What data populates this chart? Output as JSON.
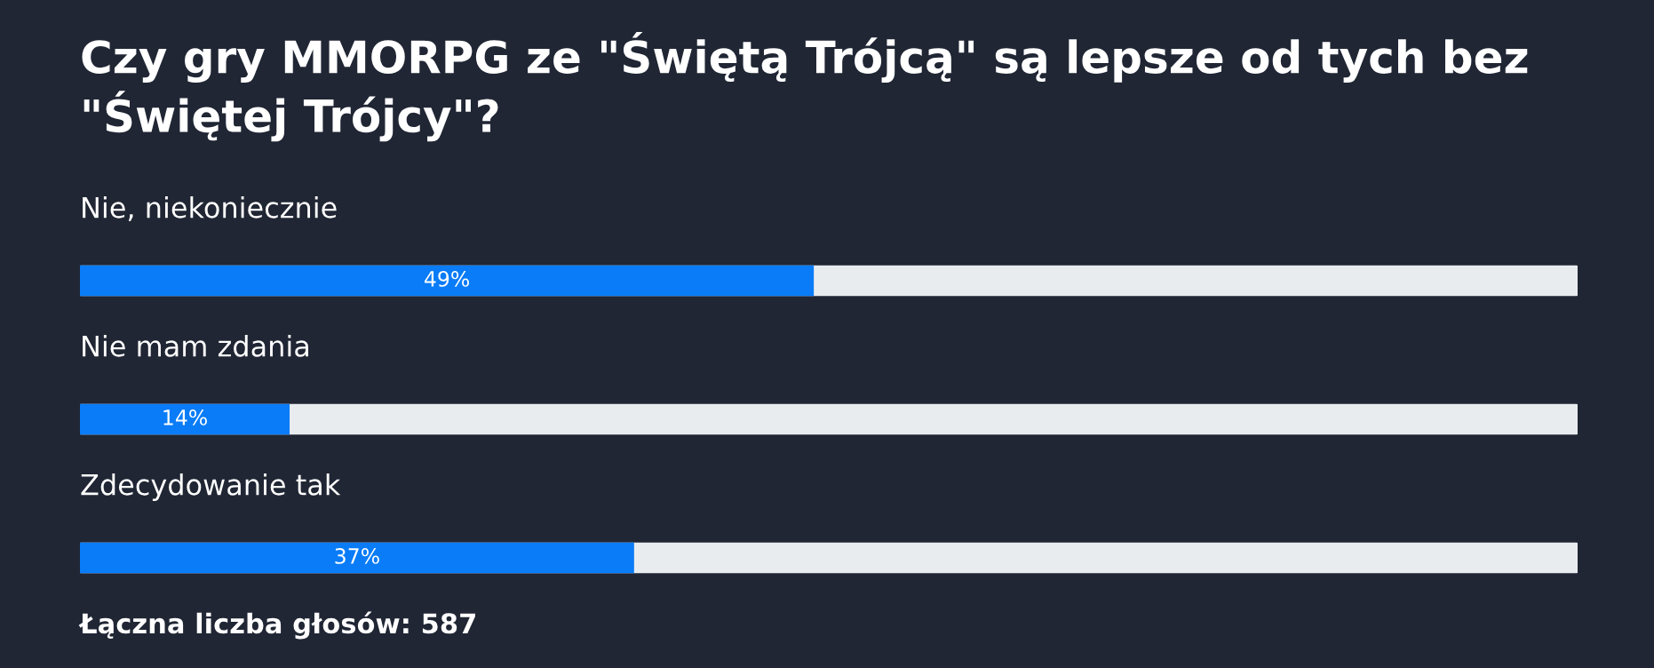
{
  "chart_data": {
    "type": "bar",
    "orientation": "horizontal",
    "title": "Czy gry MMORPG ze \"Świętą Trójcą\" są lepsze od tych bez \"Świętej Trójcy\"?",
    "categories": [
      "Nie, niekoniecznie",
      "Nie mam zdania",
      "Zdecydowanie tak"
    ],
    "values": [
      49,
      14,
      37
    ],
    "value_labels": [
      "49%",
      "14%",
      "37%"
    ],
    "color": "#0a7cf7",
    "xlim": [
      0,
      100
    ],
    "annotations": [
      "Łączna liczba głosów: 587"
    ]
  }
}
